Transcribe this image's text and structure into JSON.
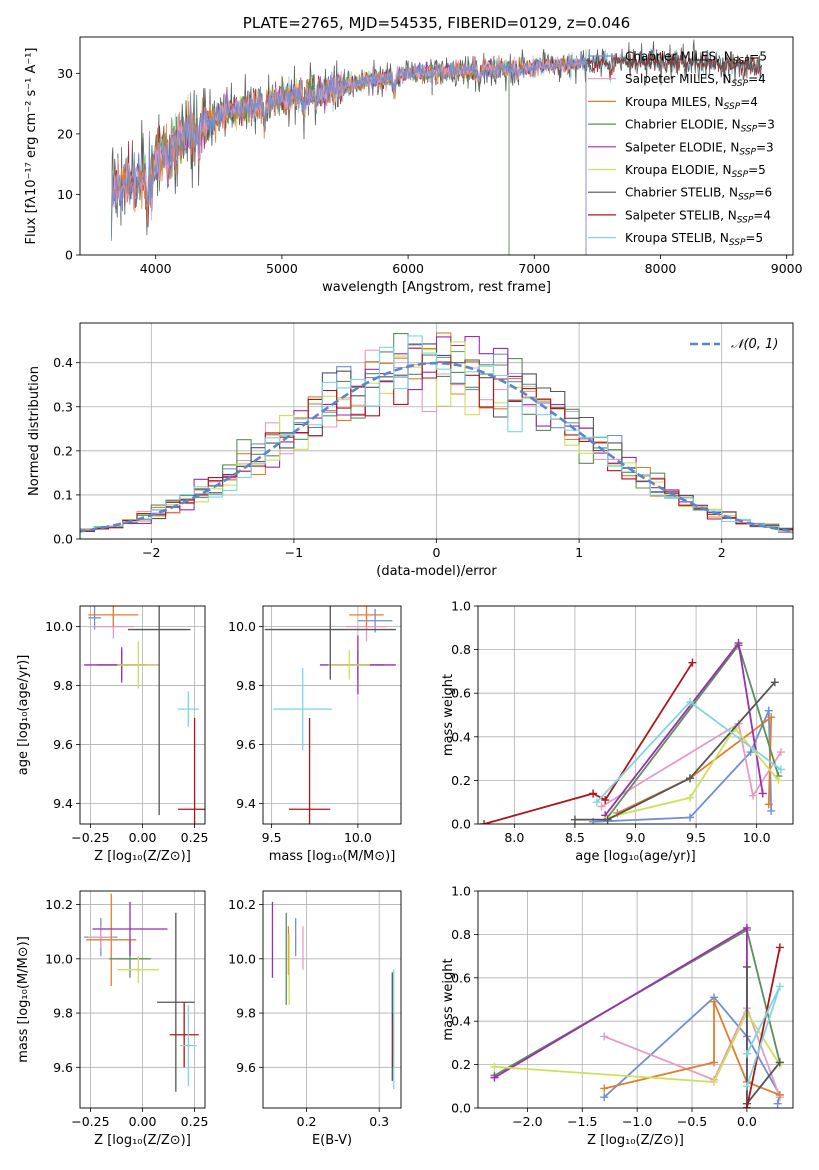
{
  "chart_data": [
    {
      "type": "line",
      "title": "PLATE=2765, MJD=54535, FIBERID=0129, z=0.046",
      "xlabel": "wavelength [Angstrom, rest frame]",
      "ylabel": "Flux [fλ10⁻¹⁷ erg cm⁻² s⁻¹ A⁻¹]",
      "xlim": [
        3400,
        9050
      ],
      "ylim": [
        0,
        36
      ],
      "xticks": [
        4000,
        5000,
        6000,
        7000,
        8000,
        9000
      ],
      "yticks": [
        0,
        10,
        20,
        30
      ],
      "continuum": [
        [
          3650,
          10.5
        ],
        [
          3900,
          13
        ],
        [
          4000,
          16
        ],
        [
          4300,
          21
        ],
        [
          4500,
          23
        ],
        [
          5000,
          26
        ],
        [
          5500,
          28
        ],
        [
          6000,
          30
        ],
        [
          6500,
          30.5
        ],
        [
          7000,
          31
        ],
        [
          7500,
          32
        ],
        [
          8000,
          32
        ],
        [
          8500,
          31.5
        ],
        [
          8800,
          31
        ]
      ],
      "data_range": [
        3650,
        8800
      ],
      "series": [
        {
          "name": "Chabrier MILES, N",
          "sub": "SSP",
          "suffix": "=5",
          "color": "#6f8fd6",
          "x": [
            3650,
            7410
          ]
        },
        {
          "name": "Salpeter MILES, N",
          "sub": "SSP",
          "suffix": "=4",
          "color": "#e89ac7",
          "x": [
            3650,
            7410
          ]
        },
        {
          "name": "Kroupa MILES, N",
          "sub": "SSP",
          "suffix": "=4",
          "color": "#e07f2e",
          "x": [
            3650,
            7410
          ]
        },
        {
          "name": "Chabrier ELODIE, N",
          "sub": "SSP",
          "suffix": "=3",
          "color": "#5b8f5b",
          "x": [
            3900,
            6800
          ]
        },
        {
          "name": "Salpeter ELODIE, N",
          "sub": "SSP",
          "suffix": "=3",
          "color": "#9b2fae",
          "x": [
            3900,
            6800
          ]
        },
        {
          "name": "Kroupa ELODIE, N",
          "sub": "SSP",
          "suffix": "=5",
          "color": "#cfe05a",
          "x": [
            3900,
            6800
          ]
        },
        {
          "name": "Chabrier STELIB, N",
          "sub": "SSP",
          "suffix": "=6",
          "color": "#555555",
          "x": [
            3650,
            8800
          ]
        },
        {
          "name": "Salpeter STELIB, N",
          "sub": "SSP",
          "suffix": "=4",
          "color": "#b0151a",
          "x": [
            3650,
            8800
          ]
        },
        {
          "name": "Kroupa STELIB, N",
          "sub": "SSP",
          "suffix": "=5",
          "color": "#7fd6e0",
          "x": [
            3650,
            8800
          ]
        }
      ],
      "legend": "right"
    },
    {
      "type": "step",
      "xlabel": "(data-model)/error",
      "ylabel": "Normed distribution",
      "xlim": [
        -2.5,
        2.5
      ],
      "ylim": [
        0,
        0.49
      ],
      "xticks": [
        -2,
        -1,
        0,
        1,
        2
      ],
      "yticks": [
        0.0,
        0.1,
        0.2,
        0.3,
        0.4
      ],
      "grid": true,
      "reference": {
        "name": "𝒩(0, 1)",
        "mean": 0,
        "sigma": 1
      },
      "bin_width": 0.1,
      "legend": "top-right"
    },
    {
      "type": "errorbar",
      "xlabel": "Z [log₁₀(Z/Z⊙)]",
      "ylabel": "age  [log₁₀(age/yr)]",
      "xlim": [
        -0.3,
        0.3
      ],
      "ylim": [
        9.33,
        10.07
      ],
      "xticks": [
        -0.25,
        0.0,
        0.25
      ],
      "yticks": [
        9.4,
        9.6,
        9.8,
        10.0
      ],
      "grid": true,
      "points": [
        {
          "x": -0.23,
          "xerr": 0.03,
          "y": 10.03,
          "yerr": 0.04,
          "color": "#6f8fd6"
        },
        {
          "x": -0.14,
          "xerr": 0.1,
          "y": 10.0,
          "yerr": 0.04,
          "color": "#e89ac7"
        },
        {
          "x": -0.14,
          "xerr": 0.12,
          "y": 10.04,
          "yerr": 0.04,
          "color": "#e07f2e"
        },
        {
          "x": -0.1,
          "xerr": 0.12,
          "y": 9.87,
          "yerr": 0.05,
          "color": "#5b8f5b"
        },
        {
          "x": -0.1,
          "xerr": 0.18,
          "y": 9.87,
          "yerr": 0.06,
          "color": "#9b2fae"
        },
        {
          "x": -0.02,
          "xerr": 0.1,
          "y": 9.87,
          "yerr": 0.08,
          "color": "#cfe05a"
        },
        {
          "x": 0.08,
          "xerr": 0.15,
          "y": 9.99,
          "yerr": 0.63,
          "color": "#555555"
        },
        {
          "x": 0.25,
          "xerr": 0.08,
          "y": 9.38,
          "yerr": 0.31,
          "color": "#b0151a"
        },
        {
          "x": 0.22,
          "xerr": 0.05,
          "y": 9.72,
          "yerr": 0.06,
          "color": "#7fd6e0"
        }
      ]
    },
    {
      "type": "errorbar",
      "xlabel": "mass [log₁₀(M/M⊙)]",
      "ylabel": "",
      "xlim": [
        9.45,
        10.25
      ],
      "ylim": [
        9.33,
        10.07
      ],
      "xticks": [
        9.5,
        10.0
      ],
      "yticks": [
        9.4,
        9.6,
        9.8,
        10.0
      ],
      "grid": true,
      "points": [
        {
          "x": 10.1,
          "xerr": 0.1,
          "y": 10.02,
          "yerr": 0.04,
          "color": "#6f8fd6"
        },
        {
          "x": 10.05,
          "xerr": 0.12,
          "y": 10.0,
          "yerr": 0.05,
          "color": "#e89ac7"
        },
        {
          "x": 10.05,
          "xerr": 0.1,
          "y": 10.04,
          "yerr": 0.04,
          "color": "#e07f2e"
        },
        {
          "x": 10.0,
          "xerr": 0.15,
          "y": 9.87,
          "yerr": 0.05,
          "color": "#5b8f5b"
        },
        {
          "x": 10.0,
          "xerr": 0.22,
          "y": 9.87,
          "yerr": 0.1,
          "color": "#9b2fae"
        },
        {
          "x": 9.95,
          "xerr": 0.12,
          "y": 9.87,
          "yerr": 0.05,
          "color": "#cfe05a"
        },
        {
          "x": 9.84,
          "xerr": 0.38,
          "y": 9.99,
          "yerr": 0.17,
          "color": "#555555"
        },
        {
          "x": 9.72,
          "xerr": 0.12,
          "y": 9.38,
          "yerr": 0.31,
          "color": "#b0151a"
        },
        {
          "x": 9.68,
          "xerr": 0.17,
          "y": 9.72,
          "yerr": 0.14,
          "color": "#7fd6e0"
        }
      ]
    },
    {
      "type": "line",
      "xlabel": "age  [log₁₀(age/yr)]",
      "ylabel": "mass weight",
      "xlim": [
        7.7,
        10.3
      ],
      "ylim": [
        0,
        1.0
      ],
      "xticks": [
        8.0,
        8.5,
        9.0,
        9.5,
        10.0
      ],
      "yticks": [
        0.0,
        0.2,
        0.4,
        0.6,
        0.8,
        1.0
      ],
      "grid": true,
      "series": [
        {
          "color": "#6f8fd6",
          "x": [
            8.65,
            9.45,
            9.95,
            10.1,
            10.12
          ],
          "y": [
            0.01,
            0.03,
            0.33,
            0.52,
            0.06
          ]
        },
        {
          "color": "#e89ac7",
          "x": [
            8.72,
            9.85,
            9.97,
            10.2
          ],
          "y": [
            0.08,
            0.46,
            0.13,
            0.33
          ]
        },
        {
          "color": "#e07f2e",
          "x": [
            8.85,
            9.45,
            10.12,
            10.1
          ],
          "y": [
            0.05,
            0.21,
            0.49,
            0.09
          ]
        },
        {
          "color": "#5b8f5b",
          "x": [
            8.77,
            9.85,
            10.18
          ],
          "y": [
            0.03,
            0.82,
            0.22
          ]
        },
        {
          "color": "#9b2fae",
          "x": [
            8.75,
            9.85,
            10.05
          ],
          "y": [
            0.04,
            0.83,
            0.14
          ]
        },
        {
          "color": "#cfe05a",
          "x": [
            8.77,
            9.45,
            9.82,
            10.18
          ],
          "y": [
            0.03,
            0.12,
            0.44,
            0.2
          ]
        },
        {
          "color": "#555555",
          "x": [
            8.5,
            8.77,
            9.45,
            10.15
          ],
          "y": [
            0.02,
            0.02,
            0.21,
            0.65
          ]
        },
        {
          "color": "#b0151a",
          "x": [
            7.75,
            8.65,
            8.75,
            9.47
          ],
          "y": [
            0.0,
            0.14,
            0.11,
            0.74
          ]
        },
        {
          "color": "#7fd6e0",
          "x": [
            8.68,
            9.45,
            10.2
          ],
          "y": [
            0.1,
            0.56,
            0.25
          ]
        }
      ]
    },
    {
      "type": "errorbar",
      "xlabel": "Z [log₁₀(Z/Z⊙)]",
      "ylabel": "mass [log₁₀(M/M⊙)]",
      "xlim": [
        -0.3,
        0.3
      ],
      "ylim": [
        9.45,
        10.25
      ],
      "xticks": [
        -0.25,
        0.0,
        0.25
      ],
      "yticks": [
        9.6,
        9.8,
        10.0,
        10.2
      ],
      "grid": true,
      "points": [
        {
          "x": -0.2,
          "xerr": 0.08,
          "y": 10.08,
          "yerr": 0.07,
          "color": "#6f8fd6"
        },
        {
          "x": -0.2,
          "xerr": 0.06,
          "y": 10.08,
          "yerr": 0.04,
          "color": "#e89ac7"
        },
        {
          "x": -0.15,
          "xerr": 0.12,
          "y": 10.07,
          "yerr": 0.17,
          "color": "#e07f2e"
        },
        {
          "x": -0.06,
          "xerr": 0.1,
          "y": 10.0,
          "yerr": 0.07,
          "color": "#5b8f5b"
        },
        {
          "x": -0.06,
          "xerr": 0.18,
          "y": 10.11,
          "yerr": 0.1,
          "color": "#9b2fae"
        },
        {
          "x": -0.02,
          "xerr": 0.1,
          "y": 9.96,
          "yerr": 0.05,
          "color": "#cfe05a"
        },
        {
          "x": 0.16,
          "xerr": 0.09,
          "y": 9.84,
          "yerr": 0.33,
          "color": "#555555"
        },
        {
          "x": 0.2,
          "xerr": 0.07,
          "y": 9.72,
          "yerr": 0.12,
          "color": "#b0151a"
        },
        {
          "x": 0.22,
          "xerr": 0.04,
          "y": 9.68,
          "yerr": 0.15,
          "color": "#7fd6e0"
        }
      ]
    },
    {
      "type": "errorbar",
      "xlabel": "E(B-V)",
      "ylabel": "",
      "xlim": [
        0.14,
        0.33
      ],
      "ylim": [
        9.45,
        10.25
      ],
      "xticks": [
        0.2,
        0.3
      ],
      "yticks": [
        9.6,
        9.8,
        10.0,
        10.2
      ],
      "grid": true,
      "points": [
        {
          "x": 0.185,
          "y": 10.08,
          "yerr": 0.07,
          "color": "#6f8fd6"
        },
        {
          "x": 0.195,
          "y": 10.04,
          "yerr": 0.08,
          "color": "#e89ac7"
        },
        {
          "x": 0.175,
          "y": 10.03,
          "yerr": 0.09,
          "color": "#e07f2e"
        },
        {
          "x": 0.172,
          "y": 10.0,
          "yerr": 0.17,
          "color": "#5b8f5b"
        },
        {
          "x": 0.153,
          "y": 10.07,
          "yerr": 0.14,
          "color": "#9b2fae"
        },
        {
          "x": 0.176,
          "y": 9.96,
          "yerr": 0.13,
          "color": "#cfe05a"
        },
        {
          "x": 0.318,
          "y": 9.75,
          "yerr": 0.2,
          "color": "#555555"
        },
        {
          "x": 0.319,
          "y": 9.7,
          "yerr": 0.1,
          "color": "#b0151a"
        },
        {
          "x": 0.32,
          "y": 9.74,
          "yerr": 0.22,
          "color": "#7fd6e0"
        }
      ]
    },
    {
      "type": "line",
      "xlabel": "Z [log₁₀(Z/Z⊙)]",
      "ylabel": "mass weight",
      "xlim": [
        -2.45,
        0.42
      ],
      "ylim": [
        0,
        1.0
      ],
      "xticks": [
        -2.0,
        -1.5,
        -1.0,
        -0.5,
        0.0
      ],
      "yticks": [
        0.0,
        0.2,
        0.4,
        0.6,
        0.8,
        1.0
      ],
      "grid": true,
      "series": [
        {
          "color": "#6f8fd6",
          "x": [
            -1.3,
            -0.3,
            0.0,
            0.3,
            0.28
          ],
          "y": [
            0.05,
            0.51,
            0.33,
            0.06,
            0.02
          ]
        },
        {
          "color": "#e89ac7",
          "x": [
            -1.3,
            -0.3,
            0.0,
            0.3
          ],
          "y": [
            0.33,
            0.13,
            0.46,
            0.05
          ]
        },
        {
          "color": "#e07f2e",
          "x": [
            -1.3,
            -0.3,
            -0.3,
            0.0,
            0.3
          ],
          "y": [
            0.09,
            0.21,
            0.49,
            0.12,
            0.06
          ]
        },
        {
          "color": "#5b8f5b",
          "x": [
            -2.3,
            0.0,
            0.3
          ],
          "y": [
            0.15,
            0.82,
            0.21
          ]
        },
        {
          "color": "#9b2fae",
          "x": [
            -2.3,
            0.0,
            0.0
          ],
          "y": [
            0.14,
            0.83,
            0.0
          ]
        },
        {
          "color": "#cfe05a",
          "x": [
            -2.3,
            -0.3,
            0.0,
            0.3
          ],
          "y": [
            0.19,
            0.12,
            0.44,
            0.2
          ]
        },
        {
          "color": "#555555",
          "x": [
            0.0,
            0.0,
            0.3
          ],
          "y": [
            0.65,
            0.02,
            0.21
          ]
        },
        {
          "color": "#b0151a",
          "x": [
            0.0,
            0.3
          ],
          "y": [
            0.0,
            0.74
          ]
        },
        {
          "color": "#7fd6e0",
          "x": [
            0.0,
            0.3,
            0.0
          ],
          "y": [
            0.1,
            0.56,
            0.25
          ]
        }
      ]
    }
  ]
}
